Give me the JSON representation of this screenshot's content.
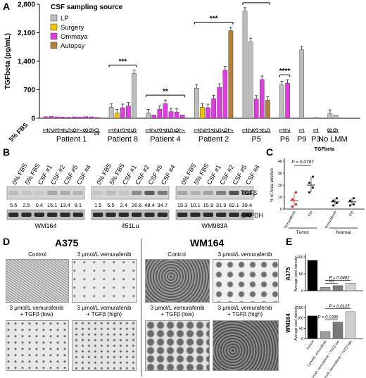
{
  "panels": {
    "A": "A",
    "B": "B",
    "C": "C",
    "D": "D",
    "E": "E"
  },
  "chart_data": [
    {
      "id": "A",
      "type": "bar",
      "ylabel": "TGFbeta (pg/mL)",
      "yticks": [
        "0",
        "700",
        "1,400",
        "2,100",
        "2,800"
      ],
      "ylim": [
        0,
        2800
      ],
      "legend": {
        "title": "CSF sampling source",
        "placement": "top-left",
        "entries": [
          {
            "name": "LP",
            "color": "#bdbdbd"
          },
          {
            "name": "Surgery",
            "color": "#f5c400"
          },
          {
            "name": "Ommaya",
            "color": "#e23be2"
          },
          {
            "name": "Autopsy",
            "color": "#b5803a"
          }
        ]
      },
      "baseline_label": "5% FBS",
      "groups": [
        {
          "name": "Patient 1",
          "bars": [
            {
              "label": "1",
              "value": 40,
              "source": "Ommaya"
            },
            {
              "label": "2",
              "value": 45,
              "source": "Ommaya"
            },
            {
              "label": "3",
              "value": 35,
              "source": "Ommaya"
            },
            {
              "label": "4",
              "value": 30,
              "source": "Ommaya"
            },
            {
              "label": "5",
              "value": 25,
              "source": "Ommaya"
            },
            {
              "label": "6",
              "value": 35,
              "source": "Ommaya"
            },
            {
              "label": "7",
              "value": 30,
              "source": "Ommaya"
            },
            {
              "label": "8",
              "value": 40,
              "source": "Ommaya"
            },
            {
              "label": "9",
              "value": 35,
              "source": "Ommaya"
            },
            {
              "label": "10",
              "value": 20,
              "source": "Ommaya"
            }
          ]
        },
        {
          "name": "Patient 8",
          "sig": "***",
          "bars": [
            {
              "label": "1",
              "value": 270,
              "source": "LP"
            },
            {
              "label": "2",
              "value": 130,
              "source": "Surgery"
            },
            {
              "label": "3",
              "value": 260,
              "source": "Ommaya"
            },
            {
              "label": "4",
              "value": 300,
              "source": "Ommaya"
            },
            {
              "label": "5",
              "value": 1100,
              "source": "LP"
            }
          ]
        },
        {
          "name": "Patient 4",
          "sig": "**",
          "bars": [
            {
              "label": "1",
              "value": 130,
              "source": "LP"
            },
            {
              "label": "2",
              "value": 80,
              "source": "Ommaya"
            },
            {
              "label": "3",
              "value": 220,
              "source": "Ommaya"
            },
            {
              "label": "4",
              "value": 360,
              "source": "Ommaya"
            },
            {
              "label": "5",
              "value": 160,
              "source": "Ommaya"
            },
            {
              "label": "6",
              "value": 150,
              "source": "Ommaya"
            },
            {
              "label": "7",
              "value": 80,
              "source": "Ommaya"
            }
          ]
        },
        {
          "name": "Patient 2",
          "sig": "***",
          "bars": [
            {
              "label": "1",
              "value": 740,
              "source": "LP"
            },
            {
              "label": "2",
              "value": 270,
              "source": "Surgery"
            },
            {
              "label": "3",
              "value": 260,
              "source": "Ommaya"
            },
            {
              "label": "4",
              "value": 480,
              "source": "Ommaya"
            },
            {
              "label": "5",
              "value": 760,
              "source": "Ommaya"
            },
            {
              "label": "6",
              "value": 1180,
              "source": "Ommaya"
            },
            {
              "label": "7",
              "value": 2150,
              "source": "Autopsy"
            }
          ]
        },
        {
          "name": "P5",
          "sig": "**",
          "bars": [
            {
              "label": "1",
              "value": 2630,
              "source": "LP"
            },
            {
              "label": "2",
              "value": 1880,
              "source": "LP"
            },
            {
              "label": "3",
              "value": 470,
              "source": "Ommaya"
            },
            {
              "label": "4",
              "value": 950,
              "source": "Ommaya"
            },
            {
              "label": "5",
              "value": 440,
              "source": "Autopsy"
            }
          ]
        },
        {
          "name": "P6",
          "sig": "****",
          "bars": [
            {
              "label": "1",
              "value": 820,
              "source": "LP"
            },
            {
              "label": "2",
              "value": 860,
              "source": "Ommaya"
            }
          ]
        },
        {
          "name": "P9",
          "bars": [
            {
              "label": "1",
              "value": 1680,
              "source": "LP"
            }
          ]
        },
        {
          "name": "P3",
          "bars": [
            {
              "label": "1",
              "value": 20,
              "source": "LP"
            }
          ]
        },
        {
          "name": "No LMM",
          "bars": [
            {
              "label": "8",
              "value": 120,
              "source": "LP"
            },
            {
              "label": "9",
              "value": 80,
              "source": "LP"
            }
          ]
        }
      ]
    },
    {
      "id": "B",
      "type": "table",
      "blots": [
        {
          "cell_line": "WM164",
          "lanes": [
            "0% FBS",
            "5% FBS",
            "CSF #1",
            "CSF #2",
            "CSF #5",
            "CSF #4"
          ],
          "values": [
            "5.5",
            "2.5",
            "0.4",
            "15.1",
            "13.4",
            "9.1"
          ]
        },
        {
          "cell_line": "451Lu",
          "lanes": [
            "0% FBS",
            "5% FBS",
            "CSF #1",
            "CSF #2",
            "CSF #5",
            "CSF #4"
          ],
          "values": [
            "1.5",
            "5.5",
            "2.4",
            "26.6",
            "48.4",
            "34.7"
          ]
        },
        {
          "cell_line": "WM983A",
          "lanes": [
            "0% FBS",
            "5% FBS",
            "CSF #1",
            "CSF #2",
            "CSF #5",
            "CSF #4"
          ],
          "values": [
            "15.3",
            "10.1",
            "15.9",
            "31.9",
            "62.1",
            "39.4"
          ]
        }
      ],
      "row_labels": [
        "TGFβ",
        "GAPDH"
      ]
    },
    {
      "id": "C",
      "type": "scatter",
      "title": "TGFbeta",
      "ylabel": "% of Area positive",
      "yticks": [
        "0",
        "10",
        "20",
        "30",
        "40"
      ],
      "ylim": [
        0,
        40
      ],
      "annotation": "P = 0.0787",
      "categories": [
        "Vemurafenib",
        "Ctrl",
        "Vemurafenib",
        "Ctrl"
      ],
      "groups": [
        "Tumor",
        "Normal"
      ],
      "series": [
        {
          "category": "Vemurafenib",
          "group": "Tumor",
          "values": [
            2,
            4,
            8,
            14
          ],
          "mean": 7,
          "color": "#d62020"
        },
        {
          "category": "Ctrl",
          "group": "Tumor",
          "values": [
            14,
            18,
            22,
            27
          ],
          "mean": 20,
          "color": "#222222"
        },
        {
          "category": "Vemurafenib",
          "group": "Normal",
          "values": [
            3,
            5,
            7,
            9
          ],
          "mean": 6,
          "color": "#222222"
        },
        {
          "category": "Ctrl",
          "group": "Normal",
          "values": [
            3,
            4,
            7,
            9
          ],
          "mean": 6,
          "color": "#222222"
        }
      ]
    },
    {
      "id": "E-A375",
      "type": "bar",
      "title": "A375",
      "ylabel": "Average pixel intensity",
      "yticks": [
        "0",
        "50",
        "100"
      ],
      "ylim": [
        0,
        100
      ],
      "categories": [
        "Control",
        "3 μmol/L vemurafenib",
        "3 μmol/L vemurafenib + TGFβ low",
        "3 μmol/L vemurafenib + TGFβ high"
      ],
      "values": [
        90,
        10,
        15,
        22
      ],
      "colors": [
        "#000000",
        "#9e9e9e",
        "#7a7a7a",
        "#d0d0d0"
      ],
      "annotations": [
        "P = 0.0482",
        "NS"
      ]
    },
    {
      "id": "E-WM164",
      "type": "bar",
      "title": "WM164",
      "ylabel": "Average pixel intensity",
      "yticks": [
        "0",
        "50",
        "100",
        "150"
      ],
      "ylim": [
        0,
        150
      ],
      "categories": [
        "Control",
        "3 μmol/L vemurafenib",
        "3 μmol/L vemurafenib + TGFβ low",
        "3 μmol/L vemurafenib + TGFβ high"
      ],
      "values": [
        110,
        35,
        80,
        130
      ],
      "colors": [
        "#000000",
        "#9e9e9e",
        "#7a7a7a",
        "#d0d0d0"
      ],
      "annotations": [
        "P = 0.0125",
        "P = 0.0386"
      ]
    }
  ],
  "panel_c_labels": {
    "tumor": "Tumor",
    "normal": "Normal",
    "veh": "Vemurafenib",
    "ctrl": "Ctrl"
  },
  "panel_d": {
    "a375": {
      "title": "A375",
      "labels": [
        "Control",
        "3 μmol/L vemurafenib",
        "3 μmol/L vemurafenib\n+ TGFβ (low)",
        "3 μmol/L vemurafenib\n+ TGFβ (high)"
      ]
    },
    "wm164": {
      "title": "WM164",
      "labels": [
        "Control",
        "3 μmol/L vemurafenib",
        "3 μmol/L vemurafenib\n+ TGFβ (low)",
        "3 μmol/L vemurafenib\n+ TGFβ (high)"
      ]
    }
  },
  "panel_e_xlabels": [
    "Control",
    "3 μmol/L vemurafenib",
    "3 μmol/L vemurafenib + TGFβ low",
    "3 μmol/L vemurafenib + TGFβ high"
  ]
}
